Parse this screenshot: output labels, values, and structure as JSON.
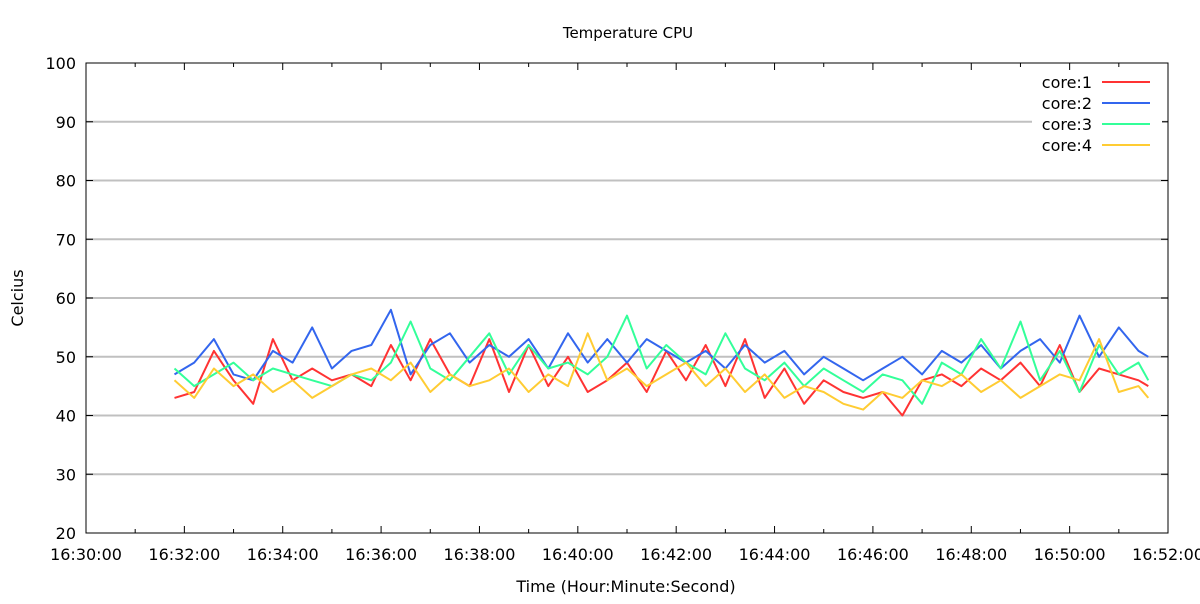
{
  "chart_data": {
    "type": "line",
    "title": "Temperature CPU",
    "xlabel": "Time (Hour:Minute:Second)",
    "ylabel": "Celcius",
    "xlim": [
      "16:30:00",
      "16:52:00"
    ],
    "ylim": [
      20,
      100
    ],
    "x_ticks": [
      "16:30:00",
      "16:32:00",
      "16:34:00",
      "16:36:00",
      "16:38:00",
      "16:40:00",
      "16:42:00",
      "16:44:00",
      "16:46:00",
      "16:48:00",
      "16:50:00",
      "16:52:00"
    ],
    "y_ticks": [
      20,
      30,
      40,
      50,
      60,
      70,
      80,
      90,
      100
    ],
    "grid": "horizontal",
    "legend_position": "top-right",
    "x": [
      "16:31:48",
      "16:32:12",
      "16:32:36",
      "16:33:00",
      "16:33:24",
      "16:33:48",
      "16:34:12",
      "16:34:36",
      "16:35:00",
      "16:35:24",
      "16:35:48",
      "16:36:12",
      "16:36:36",
      "16:37:00",
      "16:37:24",
      "16:37:48",
      "16:38:12",
      "16:38:36",
      "16:39:00",
      "16:39:24",
      "16:39:48",
      "16:40:12",
      "16:40:36",
      "16:41:00",
      "16:41:24",
      "16:41:48",
      "16:42:12",
      "16:42:36",
      "16:43:00",
      "16:43:24",
      "16:43:48",
      "16:44:12",
      "16:44:36",
      "16:45:00",
      "16:45:24",
      "16:45:48",
      "16:46:12",
      "16:46:36",
      "16:47:00",
      "16:47:24",
      "16:47:48",
      "16:48:12",
      "16:48:36",
      "16:49:00",
      "16:49:24",
      "16:49:48",
      "16:50:12",
      "16:50:36",
      "16:51:00",
      "16:51:24",
      "16:51:36"
    ],
    "series": [
      {
        "name": "core:1",
        "color": "#ff3333",
        "values": [
          43,
          44,
          51,
          46,
          42,
          53,
          46,
          48,
          46,
          47,
          45,
          52,
          46,
          53,
          47,
          45,
          53,
          44,
          52,
          45,
          50,
          44,
          46,
          49,
          44,
          51,
          46,
          52,
          45,
          53,
          43,
          48,
          42,
          46,
          44,
          43,
          44,
          40,
          46,
          47,
          45,
          48,
          46,
          49,
          45,
          52,
          44,
          48,
          47,
          46,
          45
        ]
      },
      {
        "name": "core:2",
        "color": "#3366ee",
        "values": [
          47,
          49,
          53,
          47,
          46,
          51,
          49,
          55,
          48,
          51,
          52,
          58,
          47,
          52,
          54,
          49,
          52,
          50,
          53,
          48,
          54,
          49,
          53,
          49,
          53,
          51,
          49,
          51,
          48,
          52,
          49,
          51,
          47,
          50,
          48,
          46,
          48,
          50,
          47,
          51,
          49,
          52,
          48,
          51,
          53,
          49,
          57,
          50,
          55,
          51,
          50
        ]
      },
      {
        "name": "core:3",
        "color": "#33ff99",
        "values": [
          48,
          45,
          47,
          49,
          46,
          48,
          47,
          46,
          45,
          47,
          46,
          49,
          56,
          48,
          46,
          50,
          54,
          47,
          52,
          48,
          49,
          47,
          50,
          57,
          48,
          52,
          49,
          47,
          54,
          48,
          46,
          49,
          45,
          48,
          46,
          44,
          47,
          46,
          42,
          49,
          47,
          53,
          48,
          56,
          46,
          51,
          44,
          52,
          47,
          49,
          46
        ]
      },
      {
        "name": "core:4",
        "color": "#ffcc33",
        "values": [
          46,
          43,
          48,
          45,
          47,
          44,
          46,
          43,
          45,
          47,
          48,
          46,
          49,
          44,
          47,
          45,
          46,
          48,
          44,
          47,
          45,
          54,
          46,
          48,
          45,
          47,
          49,
          45,
          48,
          44,
          47,
          43,
          45,
          44,
          42,
          41,
          44,
          43,
          46,
          45,
          47,
          44,
          46,
          43,
          45,
          47,
          46,
          53,
          44,
          45,
          43
        ]
      }
    ]
  }
}
